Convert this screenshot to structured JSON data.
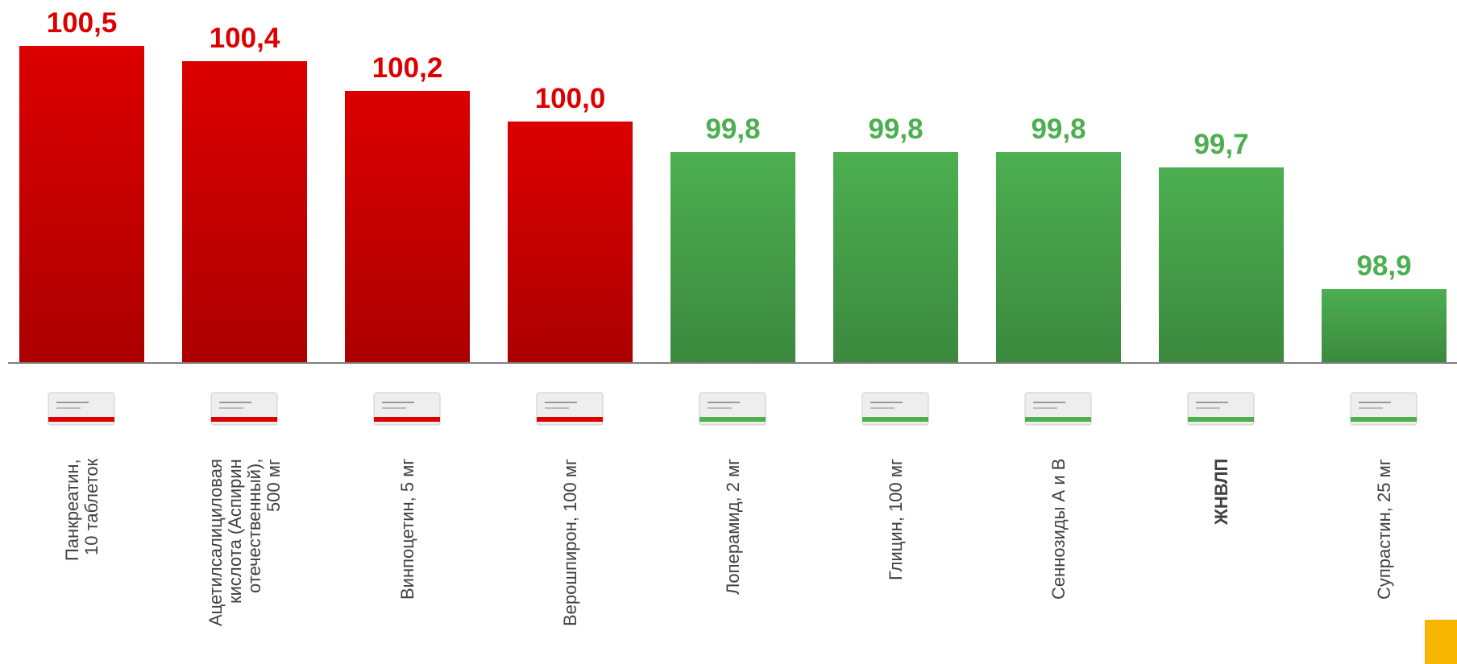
{
  "chart_data": {
    "type": "bar",
    "categories": [
      "Панкреатин,\n10 таблеток",
      "Ацетилсалициловая\nкислота (Аспирин\nотечественный),\n500 мг",
      "Винпоцетин, 5 мг",
      "Верошпирон, 100 мг",
      "Лоперамид, 2 мг",
      "Глицин, 100 мг",
      "Сеннозиды А и В",
      "ЖНВЛП",
      "Супрастин, 25 мг"
    ],
    "values": [
      100.5,
      100.4,
      100.2,
      100.0,
      99.8,
      99.8,
      99.8,
      99.7,
      98.9
    ],
    "value_labels": [
      "100,5",
      "100,4",
      "100,2",
      "100,0",
      "99,8",
      "99,8",
      "99,8",
      "99,7",
      "98,9"
    ],
    "colors": [
      "#dc0000",
      "#dc0000",
      "#dc0000",
      "#dc0000",
      "#4caf50",
      "#4caf50",
      "#4caf50",
      "#4caf50",
      "#4caf50"
    ],
    "ylim": [
      98.42,
      100.8
    ]
  }
}
